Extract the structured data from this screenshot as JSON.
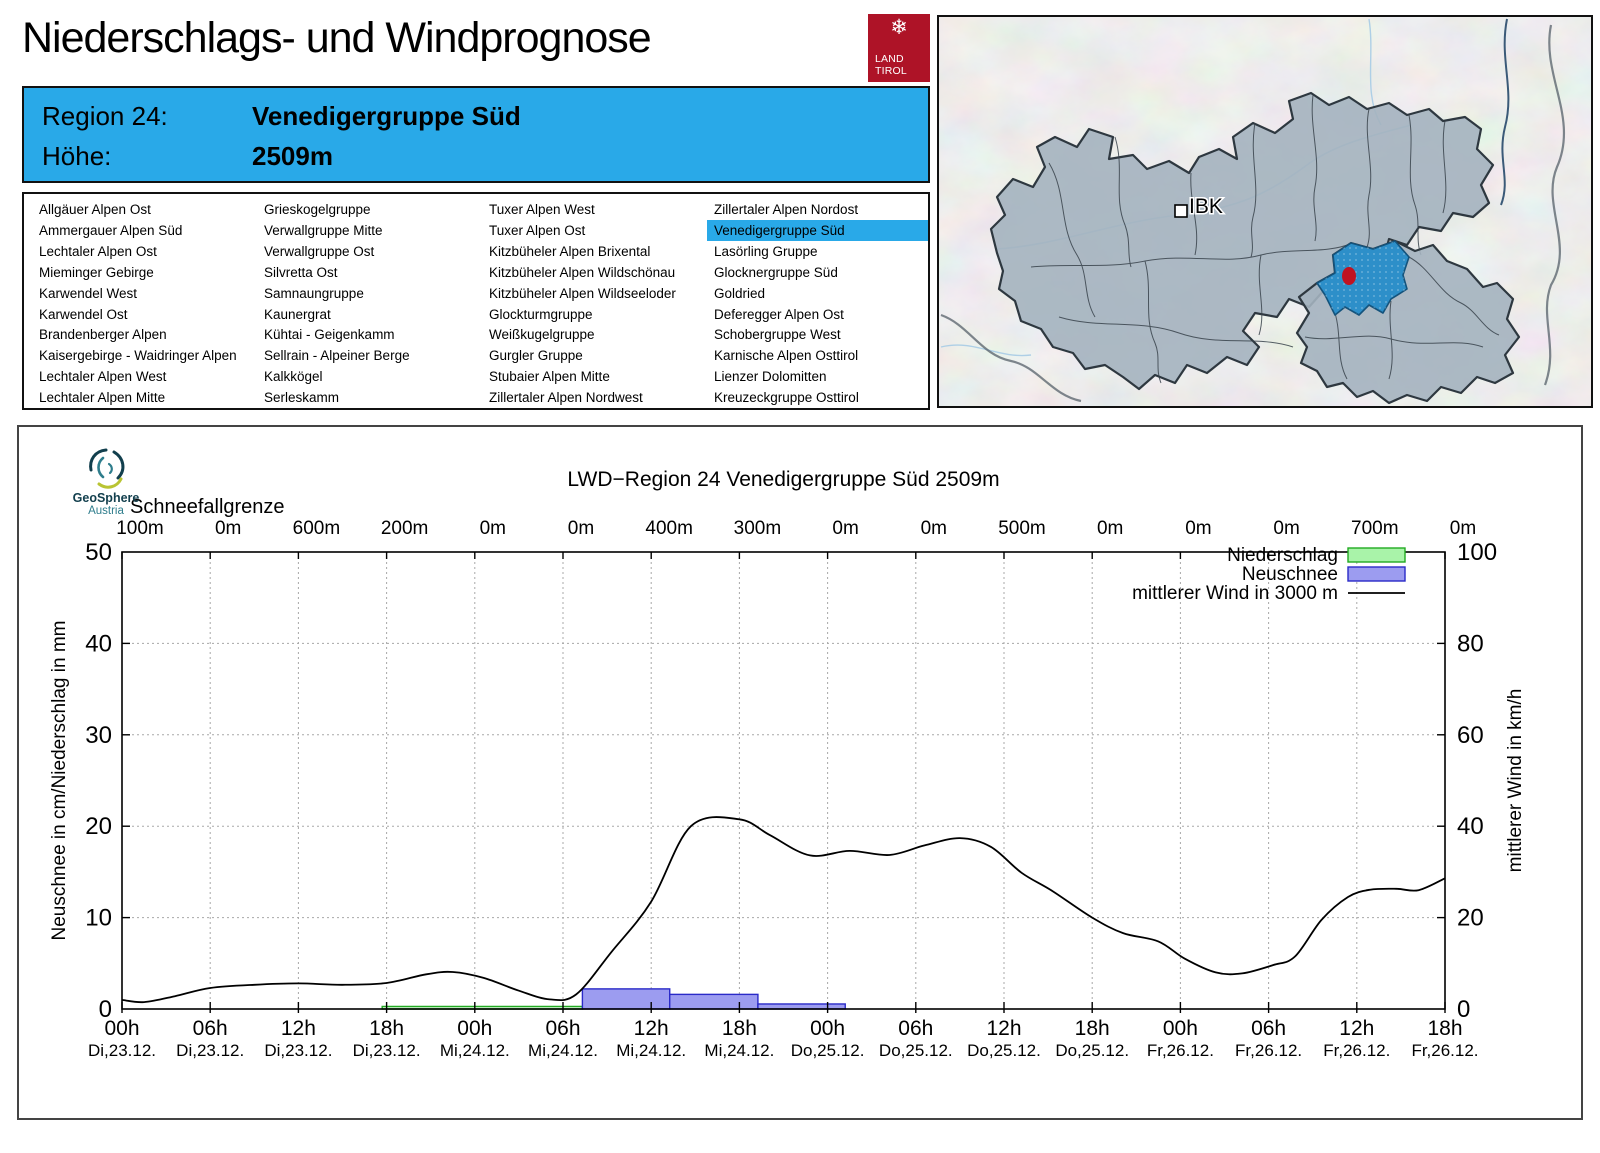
{
  "header": {
    "title": "Niederschlags- und Windprognose"
  },
  "logo": {
    "line1": "LAND",
    "line2": "TIROL",
    "snowflake": "❄",
    "color": "#ae1327"
  },
  "region_box": {
    "region_label": "Region 24:",
    "region_value": "Venedigergruppe Süd",
    "altitude_label": "Höhe:",
    "altitude_value": "2509m",
    "bg": "#29a9e8"
  },
  "region_list": {
    "selected": "Venedigergruppe Süd",
    "highlight_color": "#29a9e8",
    "columns": [
      [
        "Allgäuer Alpen Ost",
        "Ammergauer Alpen Süd",
        "Lechtaler Alpen Ost",
        "Mieminger Gebirge",
        "Karwendel West",
        "Karwendel Ost",
        "Brandenberger Alpen",
        "Kaisergebirge - Waidringer Alpen",
        "Lechtaler Alpen West",
        "Lechtaler Alpen Mitte"
      ],
      [
        "Grieskogelgruppe",
        "Verwallgruppe Mitte",
        "Verwallgruppe Ost",
        "Silvretta Ost",
        "Samnaungruppe",
        "Kaunergrat",
        "Kühtai - Geigenkamm",
        "Sellrain - Alpeiner Berge",
        "Kalkkögel",
        "Serleskamm"
      ],
      [
        "Tuxer Alpen West",
        "Tuxer Alpen Ost",
        "Kitzbüheler Alpen Brixental",
        "Kitzbüheler Alpen Wildschönau",
        "Kitzbüheler Alpen Wildseeloder",
        "Glockturmgruppe",
        "Weißkugelgruppe",
        "Gurgler Gruppe",
        "Stubaier Alpen Mitte",
        "Zillertaler Alpen Nordwest"
      ],
      [
        "Zillertaler Alpen Nordost",
        "Venedigergruppe Süd",
        "Lasörling Gruppe",
        "Glocknergruppe Süd",
        "Goldried",
        "Deferegger Alpen Ost",
        "Schobergruppe West",
        "Karnische Alpen Osttirol",
        "Lienzer Dolomitten",
        "Kreuzeckgruppe Osttirol"
      ]
    ]
  },
  "map": {
    "city_label": "IBK",
    "highlight_color": "#2d8fc9",
    "dot_color": "#c01322"
  },
  "source_logo": {
    "line1": "GeoSphere",
    "line2": "Austria"
  },
  "chart_data": {
    "type": "line+bar",
    "title": "LWD−Region 24 Venedigergruppe Süd 2509m",
    "snowline": {
      "header": "Schneefallgrenze",
      "values": [
        "100m",
        "0m",
        "600m",
        "200m",
        "0m",
        "0m",
        "400m",
        "300m",
        "0m",
        "0m",
        "500m",
        "0m",
        "0m",
        "0m",
        "700m",
        "0m"
      ]
    },
    "x_ticks": [
      {
        "t": "00h",
        "d": "Di,23.12."
      },
      {
        "t": "06h",
        "d": "Di,23.12."
      },
      {
        "t": "12h",
        "d": "Di,23.12."
      },
      {
        "t": "18h",
        "d": "Di,23.12."
      },
      {
        "t": "00h",
        "d": "Mi,24.12."
      },
      {
        "t": "06h",
        "d": "Mi,24.12."
      },
      {
        "t": "12h",
        "d": "Mi,24.12."
      },
      {
        "t": "18h",
        "d": "Mi,24.12."
      },
      {
        "t": "00h",
        "d": "Do,25.12."
      },
      {
        "t": "06h",
        "d": "Do,25.12."
      },
      {
        "t": "12h",
        "d": "Do,25.12."
      },
      {
        "t": "18h",
        "d": "Do,25.12."
      },
      {
        "t": "00h",
        "d": "Fr,26.12."
      },
      {
        "t": "06h",
        "d": "Fr,26.12."
      },
      {
        "t": "12h",
        "d": "Fr,26.12."
      },
      {
        "t": "18h",
        "d": "Fr,26.12."
      }
    ],
    "x_domain": [
      0,
      15
    ],
    "x_interval_hours": 6,
    "grid": true,
    "left_axis": {
      "label": "Neuschnee in cm/Niederschlag in mm",
      "min": 0,
      "max": 50,
      "tick_step": 10
    },
    "right_axis": {
      "label": "mittlerer Wind in km/h",
      "min": 0,
      "max": 100,
      "tick_step": 20
    },
    "legend": [
      {
        "label": "Niederschlag",
        "swatch": "box",
        "fill": "#a9f3a9",
        "stroke": "#22aa22"
      },
      {
        "label": "Neuschnee",
        "swatch": "box",
        "fill": "#9c9cf0",
        "stroke": "#2a2ac8"
      },
      {
        "label": "mittlerer Wind in 3000 m",
        "swatch": "line",
        "stroke": "#000000"
      }
    ],
    "neuschnee_bars_cm": [
      {
        "from": 5.22,
        "to": 6.21,
        "value": 2.2
      },
      {
        "from": 6.21,
        "to": 7.21,
        "value": 1.6
      },
      {
        "from": 7.21,
        "to": 8.2,
        "value": 0.55
      }
    ],
    "niederschlag_mm": [
      {
        "from": 2.95,
        "to": 5.22,
        "value": 0.28
      }
    ],
    "wind_kmh": [
      [
        0,
        2.0
      ],
      [
        0.25,
        1.5
      ],
      [
        0.6,
        2.8
      ],
      [
        1,
        4.6
      ],
      [
        1.5,
        5.3
      ],
      [
        2,
        5.6
      ],
      [
        2.5,
        5.3
      ],
      [
        3,
        5.7
      ],
      [
        3.45,
        7.6
      ],
      [
        3.75,
        8.1
      ],
      [
        4.1,
        6.8
      ],
      [
        4.5,
        4.0
      ],
      [
        4.85,
        2.1
      ],
      [
        5.15,
        3.2
      ],
      [
        5.55,
        12.5
      ],
      [
        6,
        23.5
      ],
      [
        6.45,
        40.0
      ],
      [
        7,
        41.5
      ],
      [
        7.35,
        38.0
      ],
      [
        7.8,
        33.6
      ],
      [
        8.25,
        34.6
      ],
      [
        8.7,
        33.7
      ],
      [
        9.1,
        35.8
      ],
      [
        9.5,
        37.4
      ],
      [
        9.85,
        35.5
      ],
      [
        10.2,
        29.8
      ],
      [
        10.55,
        25.8
      ],
      [
        11,
        20.0
      ],
      [
        11.35,
        16.6
      ],
      [
        11.75,
        14.8
      ],
      [
        12.05,
        11.0
      ],
      [
        12.4,
        8.0
      ],
      [
        12.7,
        7.8
      ],
      [
        13.05,
        9.6
      ],
      [
        13.3,
        11.5
      ],
      [
        13.6,
        19.5
      ],
      [
        13.9,
        24.5
      ],
      [
        14.15,
        26.1
      ],
      [
        14.45,
        26.3
      ],
      [
        14.7,
        26.0
      ],
      [
        15,
        28.6
      ]
    ]
  }
}
